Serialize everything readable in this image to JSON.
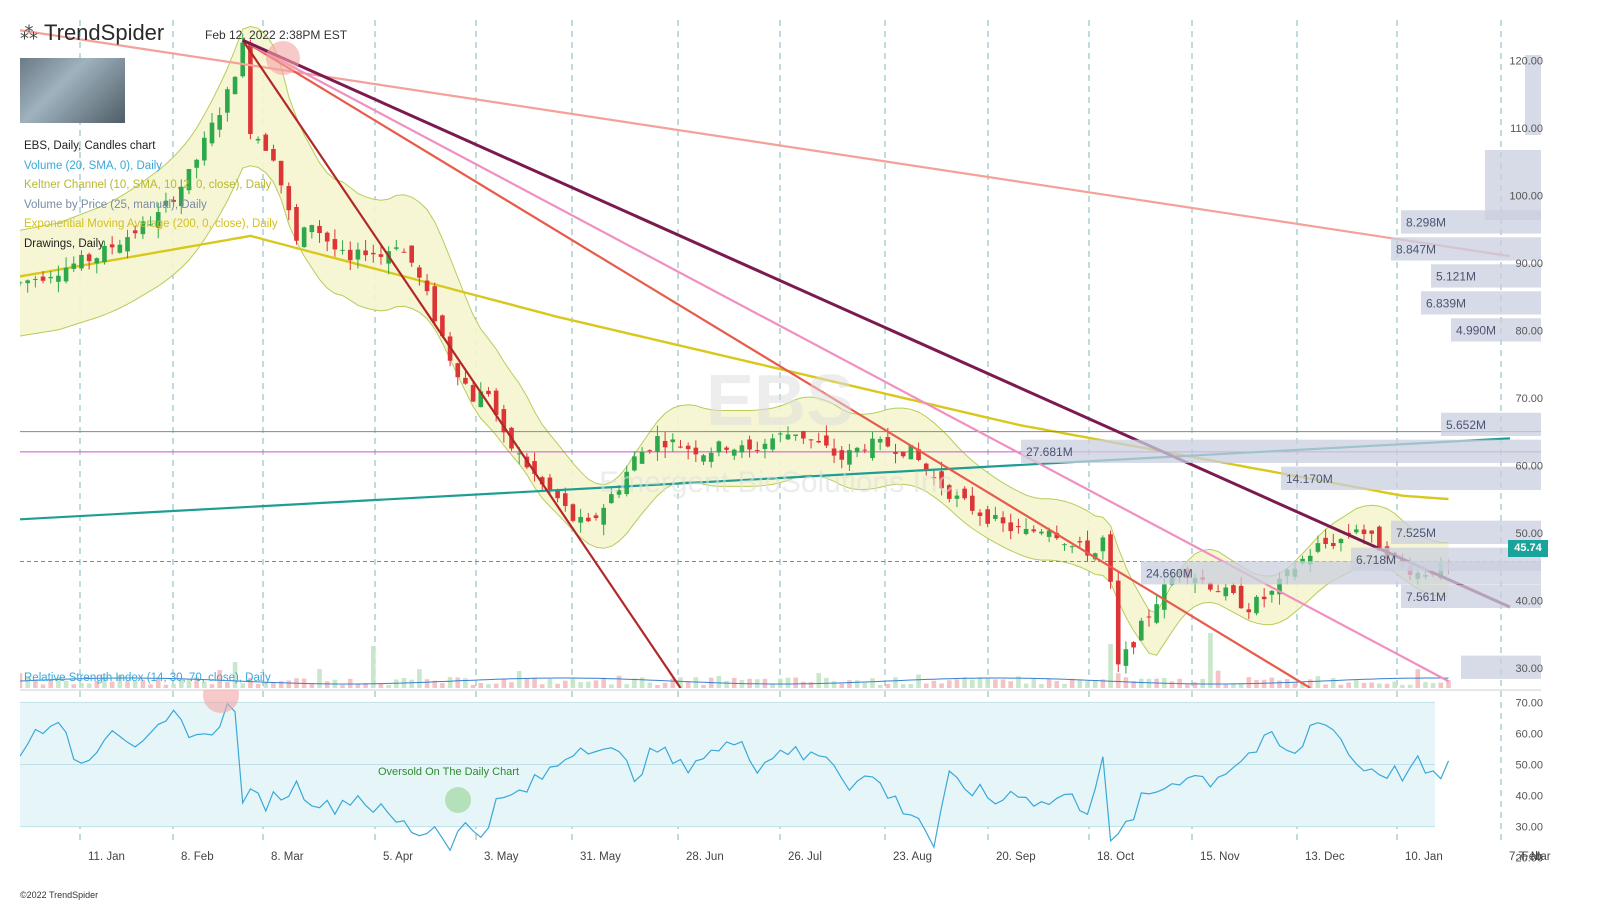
{
  "header": {
    "logo_word": "TrendSpider",
    "timestamp": "Feb 12, 2022 2:38PM EST"
  },
  "legend": [
    {
      "label": "EBS, Daily, Candles chart",
      "color": "#222222"
    },
    {
      "label": "Volume (20, SMA, 0), Daily",
      "color": "#3aa8d8"
    },
    {
      "label": "Keltner Channel (10, SMA, 10, 2, 0, close), Daily",
      "color": "#c8c840"
    },
    {
      "label": "Volume by Price (25, manual), Daily",
      "color": "#7a8aa8"
    },
    {
      "label": "Exponential Moving Average (200, 0, close), Daily",
      "color": "#d4c020"
    },
    {
      "label": "Drawings, Daily",
      "color": "#222222"
    }
  ],
  "rsi_panel": {
    "title": "Relative Strength Index (14, 30, 70, close), Daily",
    "annotation": "Oversold On The Daily Chart"
  },
  "current_price": "45.74",
  "copyright": "©2022 TrendSpider",
  "watermark": {
    "ticker": "EBS",
    "company": "Emergent BioSolutions Inc."
  },
  "chart_data": {
    "type": "candlestick",
    "symbol": "EBS",
    "timeframe": "Daily",
    "price_axis": {
      "ticks": [
        "120.00",
        "110.00",
        "100.00",
        "90.00",
        "80.00",
        "70.00",
        "60.00",
        "50.00",
        "40.00",
        "30.00"
      ],
      "ylim": [
        27,
        126
      ]
    },
    "rsi_axis": {
      "ticks": [
        "70.00",
        "60.00",
        "50.00",
        "40.00",
        "30.00",
        "20.00"
      ],
      "ylim": [
        17,
        74
      ],
      "bands": [
        30,
        70
      ]
    },
    "x_ticks": [
      "11. Jan",
      "8. Feb",
      "8. Mar",
      "5. Apr",
      "3. May",
      "31. May",
      "28. Jun",
      "26. Jul",
      "23. Aug",
      "20. Sep",
      "18. Oct",
      "15. Nov",
      "13. Dec",
      "10. Jan",
      "7. Feb",
      "7. Mar"
    ],
    "price_path": [
      [
        0,
        87
      ],
      [
        10,
        91
      ],
      [
        18,
        97
      ],
      [
        22,
        103
      ],
      [
        27,
        115
      ],
      [
        29,
        122
      ],
      [
        30,
        110
      ],
      [
        33,
        106
      ],
      [
        36,
        93
      ],
      [
        38,
        96
      ],
      [
        41,
        92
      ],
      [
        43,
        90
      ],
      [
        45,
        92
      ],
      [
        47,
        91
      ],
      [
        49,
        93
      ],
      [
        51,
        90
      ],
      [
        53,
        85
      ],
      [
        56,
        76
      ],
      [
        59,
        70
      ],
      [
        61,
        71
      ],
      [
        63,
        64
      ],
      [
        66,
        60
      ],
      [
        68,
        57
      ],
      [
        70,
        55
      ],
      [
        72,
        52
      ],
      [
        74,
        51
      ],
      [
        76,
        54
      ],
      [
        78,
        57
      ],
      [
        80,
        61
      ],
      [
        83,
        64
      ],
      [
        86,
        63
      ],
      [
        89,
        62
      ],
      [
        92,
        63
      ],
      [
        95,
        62
      ],
      [
        98,
        64
      ],
      [
        101,
        65
      ],
      [
        104,
        63
      ],
      [
        107,
        61
      ],
      [
        110,
        63
      ],
      [
        113,
        63
      ],
      [
        116,
        62
      ],
      [
        119,
        58
      ],
      [
        122,
        55
      ],
      [
        125,
        53
      ],
      [
        128,
        51
      ],
      [
        131,
        50
      ],
      [
        134,
        51
      ],
      [
        137,
        48
      ],
      [
        140,
        47
      ],
      [
        141,
        49
      ],
      [
        142,
        42
      ],
      [
        143,
        30
      ],
      [
        145,
        34
      ],
      [
        148,
        40
      ],
      [
        151,
        45
      ],
      [
        154,
        43
      ],
      [
        157,
        41
      ],
      [
        160,
        39
      ],
      [
        163,
        41
      ],
      [
        166,
        45
      ],
      [
        169,
        48
      ],
      [
        172,
        49
      ],
      [
        174,
        51
      ],
      [
        176,
        49
      ],
      [
        179,
        46
      ],
      [
        182,
        44
      ],
      [
        186,
        45
      ]
    ],
    "volume_by_price": [
      {
        "price": 30.0,
        "label": ""
      },
      {
        "price": 40.5,
        "label": "7.561M"
      },
      {
        "price": 44.0,
        "label": "24.660M"
      },
      {
        "price": 46.0,
        "label": "6.718M"
      },
      {
        "price": 50.0,
        "label": "7.525M"
      },
      {
        "price": 58.0,
        "label": "14.170M"
      },
      {
        "price": 62.0,
        "label": "27.681M"
      },
      {
        "price": 66.0,
        "label": "5.652M"
      },
      {
        "price": 80.0,
        "label": "4.990M"
      },
      {
        "price": 84.0,
        "label": "6.839M"
      },
      {
        "price": 88.0,
        "label": "5.121M"
      },
      {
        "price": 92.0,
        "label": "8.847M"
      },
      {
        "price": 96.0,
        "label": "8.298M"
      }
    ],
    "rsi_path": [
      [
        0,
        55
      ],
      [
        4,
        65
      ],
      [
        8,
        50
      ],
      [
        12,
        63
      ],
      [
        16,
        55
      ],
      [
        20,
        65
      ],
      [
        24,
        58
      ],
      [
        27,
        68
      ],
      [
        28,
        66
      ],
      [
        29,
        40
      ],
      [
        32,
        38
      ],
      [
        36,
        43
      ],
      [
        40,
        36
      ],
      [
        44,
        40
      ],
      [
        48,
        33
      ],
      [
        52,
        28
      ],
      [
        54,
        30
      ],
      [
        56,
        25
      ],
      [
        58,
        30
      ],
      [
        60,
        28
      ],
      [
        62,
        37
      ],
      [
        66,
        42
      ],
      [
        70,
        50
      ],
      [
        72,
        55
      ],
      [
        75,
        57
      ],
      [
        78,
        52
      ],
      [
        80,
        47
      ],
      [
        83,
        55
      ],
      [
        86,
        49
      ],
      [
        89,
        53
      ],
      [
        92,
        55
      ],
      [
        94,
        60
      ],
      [
        96,
        48
      ],
      [
        99,
        56
      ],
      [
        102,
        52
      ],
      [
        105,
        54
      ],
      [
        108,
        44
      ],
      [
        111,
        46
      ],
      [
        114,
        38
      ],
      [
        117,
        33
      ],
      [
        119,
        24
      ],
      [
        121,
        45
      ],
      [
        124,
        42
      ],
      [
        127,
        38
      ],
      [
        130,
        42
      ],
      [
        133,
        37
      ],
      [
        136,
        40
      ],
      [
        139,
        36
      ],
      [
        141,
        53
      ],
      [
        142,
        23
      ],
      [
        144,
        30
      ],
      [
        146,
        38
      ],
      [
        149,
        43
      ],
      [
        152,
        47
      ],
      [
        155,
        45
      ],
      [
        158,
        50
      ],
      [
        161,
        55
      ],
      [
        163,
        58
      ],
      [
        166,
        52
      ],
      [
        168,
        62
      ],
      [
        170,
        65
      ],
      [
        172,
        58
      ],
      [
        174,
        50
      ],
      [
        177,
        48
      ],
      [
        180,
        47
      ],
      [
        182,
        50
      ],
      [
        184,
        45
      ],
      [
        186,
        50
      ]
    ],
    "trendlines": [
      {
        "name": "long-term resistance",
        "color": "#f5a09a",
        "from": [
          -3,
          125
        ],
        "to": [
          194,
          91
        ]
      },
      {
        "name": "support line",
        "color": "#1e9e92",
        "from": [
          0,
          52
        ],
        "to": [
          194,
          64
        ]
      },
      {
        "name": "steep decline",
        "color": "#b22828",
        "from": [
          29,
          123
        ],
        "to": [
          86,
          27
        ]
      },
      {
        "name": "moderate decline",
        "color": "#e85a4a",
        "from": [
          29,
          123
        ],
        "to": [
          168,
          27
        ]
      },
      {
        "name": "pink decline",
        "color": "#f090c0",
        "from": [
          29,
          123
        ],
        "to": [
          186,
          28
        ]
      },
      {
        "name": "primary downtrend",
        "color": "#7a1a4e",
        "from": [
          29,
          123
        ],
        "to": [
          194,
          39
        ]
      }
    ],
    "horizontal_levels": [
      {
        "price": 65,
        "color": "#888888"
      },
      {
        "price": 62,
        "color": "#cc55cc"
      },
      {
        "price": 45.74,
        "color": "#888888",
        "dashed": true
      }
    ]
  }
}
